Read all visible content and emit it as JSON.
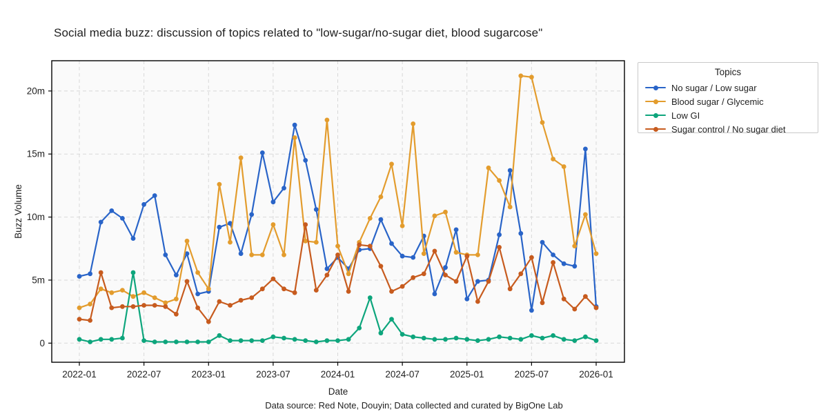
{
  "title": "Social media buzz: discussion of topics related to \"low-sugar/no-sugar diet, blood sugarcose\"",
  "footer": "Data source: Red Note, Douyin; Data collected and curated by BigOne Lab",
  "legend": {
    "title": "Topics",
    "position": "outside-right"
  },
  "axes": {
    "x_label": "Date",
    "y_label": "Buzz Volume",
    "y_ticks": [
      {
        "value": 0,
        "label": "0"
      },
      {
        "value": 5,
        "label": "5m"
      },
      {
        "value": 10,
        "label": "10m"
      },
      {
        "value": 15,
        "label": "15m"
      },
      {
        "value": 20,
        "label": "20m"
      }
    ],
    "x_ticks": [
      "2022-01",
      "2022-07",
      "2023-01",
      "2023-07",
      "2024-01",
      "2024-07",
      "2025-01",
      "2025-07",
      "2026-01"
    ],
    "grid": "dashed"
  },
  "colors": {
    "no_sugar": "#2964c8",
    "blood_sugar": "#e39c2d",
    "low_gi": "#0da57c",
    "sugar_control": "#c75b1e",
    "grid": "#d8d8d8",
    "spine": "#000000",
    "text": "#1f1f1f",
    "plot_bg": "#fafafa"
  },
  "chart_data": {
    "type": "line",
    "title": "Social media buzz: discussion of topics related to \"low-sugar/no-sugar diet, blood sugarcose\"",
    "xlabel": "Date",
    "ylabel": "Buzz Volume",
    "unit": "millions",
    "ylim": [
      -1.5,
      22.4
    ],
    "legend_position": "outside-right",
    "grid": true,
    "x": [
      "2022-01",
      "2022-02",
      "2022-03",
      "2022-04",
      "2022-05",
      "2022-06",
      "2022-07",
      "2022-08",
      "2022-09",
      "2022-10",
      "2022-11",
      "2022-12",
      "2023-01",
      "2023-02",
      "2023-03",
      "2023-04",
      "2023-05",
      "2023-06",
      "2023-07",
      "2023-08",
      "2023-09",
      "2023-10",
      "2023-11",
      "2023-12",
      "2024-01",
      "2024-02",
      "2024-03",
      "2024-04",
      "2024-05",
      "2024-06",
      "2024-07",
      "2024-08",
      "2024-09",
      "2024-10",
      "2024-11",
      "2024-12",
      "2025-01",
      "2025-02",
      "2025-03",
      "2025-04",
      "2025-05",
      "2025-06",
      "2025-07",
      "2025-08",
      "2025-09",
      "2025-10",
      "2025-11",
      "2025-12",
      "2026-01"
    ],
    "series": [
      {
        "name": "No sugar / Low sugar",
        "color_key": "no_sugar",
        "values": [
          5.3,
          5.5,
          9.6,
          10.5,
          9.9,
          8.3,
          11.0,
          11.7,
          7.0,
          5.4,
          7.1,
          3.9,
          4.1,
          9.2,
          9.5,
          7.1,
          10.2,
          15.1,
          11.2,
          12.3,
          17.3,
          14.5,
          10.6,
          5.9,
          6.8,
          5.9,
          7.4,
          7.5,
          9.8,
          7.9,
          6.9,
          6.8,
          8.5,
          3.9,
          6.0,
          9.0,
          3.5,
          4.9,
          5.0,
          8.6,
          13.7,
          8.7,
          2.6,
          8.0,
          7.0,
          6.3,
          6.1,
          15.4,
          2.9
        ]
      },
      {
        "name": "Blood sugar / Glycemic",
        "color_key": "blood_sugar",
        "values": [
          2.8,
          3.1,
          4.3,
          4.0,
          4.2,
          3.7,
          4.0,
          3.6,
          3.2,
          3.5,
          8.1,
          5.6,
          4.3,
          12.6,
          8.0,
          14.7,
          7.0,
          7.0,
          9.4,
          7.0,
          16.3,
          8.1,
          8.0,
          17.7,
          7.7,
          5.5,
          8.0,
          9.9,
          11.6,
          14.2,
          9.3,
          17.4,
          7.1,
          10.1,
          10.4,
          7.2,
          7.0,
          7.0,
          13.9,
          12.9,
          10.8,
          21.2,
          21.1,
          17.5,
          14.6,
          14.0,
          7.7,
          10.2,
          7.1
        ]
      },
      {
        "name": "Low GI",
        "color_key": "low_gi",
        "values": [
          0.3,
          0.1,
          0.3,
          0.3,
          0.4,
          5.6,
          0.2,
          0.1,
          0.1,
          0.1,
          0.1,
          0.1,
          0.1,
          0.6,
          0.2,
          0.2,
          0.2,
          0.2,
          0.5,
          0.4,
          0.3,
          0.2,
          0.1,
          0.2,
          0.2,
          0.3,
          1.2,
          3.6,
          0.8,
          1.9,
          0.7,
          0.5,
          0.4,
          0.3,
          0.3,
          0.4,
          0.3,
          0.2,
          0.3,
          0.5,
          0.4,
          0.3,
          0.6,
          0.4,
          0.6,
          0.3,
          0.2,
          0.5,
          0.2
        ]
      },
      {
        "name": "Sugar control / No sugar diet",
        "color_key": "sugar_control",
        "values": [
          1.9,
          1.8,
          5.6,
          2.8,
          2.9,
          2.9,
          3.0,
          3.0,
          2.9,
          2.3,
          4.9,
          2.8,
          1.7,
          3.3,
          3.0,
          3.4,
          3.6,
          4.3,
          5.1,
          4.3,
          4.0,
          9.4,
          4.2,
          5.4,
          7.0,
          4.1,
          7.8,
          7.7,
          6.1,
          4.1,
          4.5,
          5.2,
          5.5,
          7.3,
          5.4,
          4.9,
          6.9,
          3.3,
          4.9,
          7.6,
          4.3,
          5.5,
          6.8,
          3.2,
          6.4,
          3.5,
          2.7,
          3.7,
          2.8
        ]
      }
    ]
  }
}
